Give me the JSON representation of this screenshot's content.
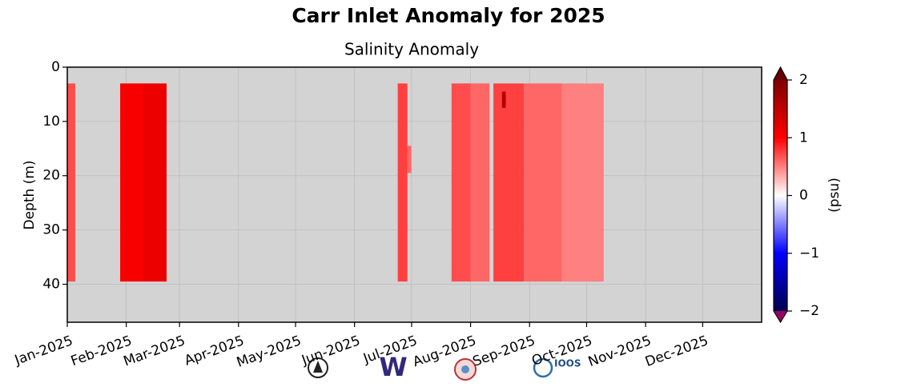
{
  "chart_data": {
    "type": "heatmap",
    "title": "Carr Inlet Anomaly for 2025",
    "subtitle": "Salinity Anomaly",
    "ylabel": "Depth (m)",
    "colorbar_label": "(psu)",
    "xlim": [
      0,
      365
    ],
    "ylim": [
      47,
      0
    ],
    "xticks": [
      {
        "value": 0,
        "label": "Jan-2025"
      },
      {
        "value": 31,
        "label": "Feb-2025"
      },
      {
        "value": 59,
        "label": "Mar-2025"
      },
      {
        "value": 90,
        "label": "Apr-2025"
      },
      {
        "value": 120,
        "label": "May-2025"
      },
      {
        "value": 151,
        "label": "Jun-2025"
      },
      {
        "value": 181,
        "label": "Jul-2025"
      },
      {
        "value": 212,
        "label": "Aug-2025"
      },
      {
        "value": 243,
        "label": "Sep-2025"
      },
      {
        "value": 273,
        "label": "Oct-2025"
      },
      {
        "value": 304,
        "label": "Nov-2025"
      },
      {
        "value": 334,
        "label": "Dec-2025"
      }
    ],
    "yticks": [
      0,
      10,
      20,
      30,
      40
    ],
    "clim": [
      -2,
      2
    ],
    "cticks": [
      {
        "value": -2,
        "label": "−2"
      },
      {
        "value": -1,
        "label": "−1"
      },
      0,
      1,
      2
    ],
    "grid": true,
    "blocks": [
      {
        "xrange": [
          0,
          4.2
        ],
        "yrange": [
          3,
          39.5
        ],
        "value": 0.7
      },
      {
        "xrange": [
          27.8,
          40
        ],
        "yrange": [
          3,
          39.5
        ],
        "value": 1.05
      },
      {
        "xrange": [
          40,
          52.2
        ],
        "yrange": [
          3,
          39.5
        ],
        "value": 1.15
      },
      {
        "xrange": [
          173.7,
          178.8
        ],
        "yrange": [
          3,
          39.5
        ],
        "value": 0.75
      },
      {
        "xrange": [
          178.8,
          180.8
        ],
        "yrange": [
          14.5,
          19.5
        ],
        "value": 0.6
      },
      {
        "xrange": [
          202,
          212
        ],
        "yrange": [
          3,
          39.5
        ],
        "value": 0.7
      },
      {
        "xrange": [
          212,
          222
        ],
        "yrange": [
          3,
          39.5
        ],
        "value": 0.6
      },
      {
        "xrange": [
          224,
          240
        ],
        "yrange": [
          3,
          39.5
        ],
        "value": 0.75
      },
      {
        "xrange": [
          240,
          260
        ],
        "yrange": [
          3,
          39.5
        ],
        "value": 0.6
      },
      {
        "xrange": [
          260,
          282
        ],
        "yrange": [
          3,
          39.5
        ],
        "value": 0.5
      },
      {
        "xrange": [
          228.5,
          230.5
        ],
        "yrange": [
          4.5,
          7.5
        ],
        "value": 1.6
      }
    ]
  },
  "logos": {
    "uw": "W",
    "ioos": "IOOS"
  }
}
